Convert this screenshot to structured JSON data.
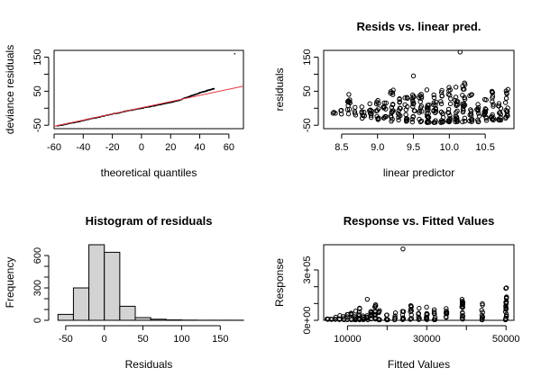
{
  "chart_data": [
    {
      "type": "scatter",
      "title": "",
      "xlabel": "theoretical quantiles",
      "ylabel": "deviance residuals",
      "xlim": [
        -60,
        70
      ],
      "ylim": [
        -60,
        170
      ],
      "xticks": [
        -60,
        -40,
        -20,
        0,
        20,
        40,
        60
      ],
      "yticks": [
        -50,
        0,
        50,
        100,
        150
      ],
      "ytick_labels": [
        "-50",
        "",
        "50",
        "",
        "150"
      ],
      "reference_line": {
        "x": [
          -60,
          70
        ],
        "y": [
          -53,
          65
        ],
        "color": "#e3343f"
      },
      "points": {
        "x": [
          -58,
          -54,
          -50,
          -45,
          -40,
          -35,
          -30,
          -25,
          -20,
          -15,
          -10,
          -5,
          0,
          5,
          10,
          15,
          20,
          25,
          30,
          34,
          38,
          41,
          44,
          46,
          48,
          50,
          64
        ],
        "y": [
          -52,
          -49,
          -45,
          -41,
          -36,
          -31,
          -27,
          -22,
          -17,
          -13,
          -8,
          -4,
          0,
          4,
          8,
          13,
          17,
          22,
          30,
          36,
          42,
          47,
          50,
          53,
          55,
          58,
          160
        ]
      }
    },
    {
      "type": "scatter",
      "title": "Resids vs. linear pred.",
      "xlabel": "linear predictor",
      "ylabel": "residuals",
      "xlim": [
        8.25,
        10.9
      ],
      "ylim": [
        -60,
        170
      ],
      "xticks": [
        8.5,
        9.0,
        9.5,
        10.0,
        10.5
      ],
      "xtick_labels": [
        "8.5",
        "9.0",
        "9.5",
        "10.0",
        "10.5"
      ],
      "yticks": [
        -50,
        0,
        50,
        100,
        150
      ],
      "ytick_labels": [
        "-50",
        "",
        "50",
        "",
        "150"
      ],
      "columns": [
        8.4,
        8.5,
        8.6,
        8.7,
        8.8,
        8.9,
        9.0,
        9.1,
        9.2,
        9.3,
        9.4,
        9.5,
        9.6,
        9.7,
        9.8,
        9.9,
        10.0,
        10.1,
        10.2,
        10.3,
        10.4,
        10.5,
        10.6,
        10.7,
        10.8
      ],
      "column_lo": [
        -15,
        -18,
        -22,
        -20,
        -30,
        -28,
        -35,
        -32,
        -38,
        -40,
        -40,
        -42,
        -40,
        -42,
        -42,
        -42,
        -45,
        -40,
        -40,
        -40,
        -40,
        -42,
        -35,
        -35,
        -35
      ],
      "column_hi": [
        -10,
        -5,
        45,
        5,
        15,
        20,
        35,
        25,
        55,
        30,
        40,
        50,
        45,
        75,
        55,
        60,
        65,
        75,
        75,
        45,
        30,
        35,
        60,
        45,
        60
      ],
      "outliers": [
        {
          "x": 9.5,
          "y": 95
        },
        {
          "x": 10.15,
          "y": 165
        }
      ]
    },
    {
      "type": "bar",
      "title": "Histogram of residuals",
      "xlabel": "Residuals",
      "ylabel": "Frequency",
      "bin_edges": [
        -60,
        -40,
        -20,
        0,
        20,
        40,
        60,
        80,
        100,
        120,
        140,
        160,
        180
      ],
      "values": [
        55,
        300,
        700,
        630,
        130,
        25,
        10,
        4,
        2,
        1,
        1,
        1
      ],
      "xlim": [
        -65,
        180
      ],
      "ylim": [
        0,
        700
      ],
      "xticks": [
        -50,
        0,
        50,
        100,
        150
      ],
      "yticks": [
        0,
        300,
        600
      ],
      "ytick_labels": [
        "0",
        "300",
        "600"
      ],
      "minor_yticks": [
        100,
        200,
        400,
        500
      ]
    },
    {
      "type": "scatter",
      "title": "Response vs. Fitted Values",
      "xlabel": "Fitted Values",
      "ylabel": "Response",
      "xlim": [
        4000,
        52000
      ],
      "ylim": [
        0,
        450000
      ],
      "xticks": [
        10000,
        30000,
        50000
      ],
      "xtick_labels": [
        "10000",
        "30000",
        "50000"
      ],
      "minor_xticks": [
        20000,
        40000
      ],
      "yticks": [
        0,
        300000
      ],
      "ytick_labels": [
        "0e+00",
        "3e+05"
      ],
      "minor_yticks": [
        100000,
        200000
      ],
      "columns": [
        5000,
        6000,
        7000,
        8000,
        9000,
        10000,
        11000,
        12000,
        13000,
        14000,
        15000,
        16000,
        17000,
        18000,
        20000,
        22000,
        24000,
        26000,
        28000,
        30000,
        32000,
        35000,
        39000,
        44000,
        50000
      ],
      "column_hi": [
        10000,
        15000,
        20000,
        30000,
        25000,
        40000,
        45000,
        60000,
        80000,
        50000,
        40000,
        60000,
        110000,
        70000,
        65000,
        50000,
        70000,
        90000,
        75000,
        80000,
        70000,
        70000,
        150000,
        100000,
        195000
      ],
      "outliers": [
        {
          "x": 24000,
          "y": 425000
        },
        {
          "x": 15000,
          "y": 125000
        }
      ]
    }
  ]
}
